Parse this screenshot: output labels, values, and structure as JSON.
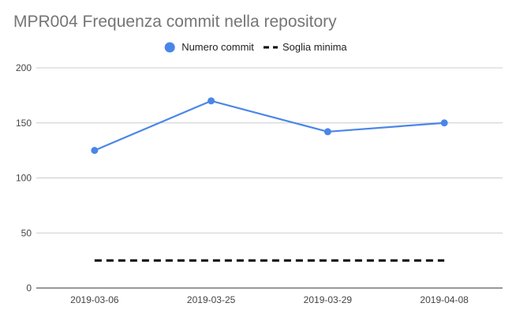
{
  "chart_data": {
    "type": "line",
    "title": "MPR004 Frequenza commit nella repository",
    "x": [
      "2019-03-06",
      "2019-03-25",
      "2019-03-29",
      "2019-04-08"
    ],
    "series": [
      {
        "name": "Numero commit",
        "values": [
          125,
          170,
          142,
          150
        ],
        "color": "#4a86e8",
        "style": "solid",
        "markers": true
      },
      {
        "name": "Soglia minima",
        "values": [
          25,
          25,
          25,
          25
        ],
        "color": "#000000",
        "style": "dashed",
        "markers": false
      }
    ],
    "ylim": [
      0,
      200
    ],
    "yticks": [
      0,
      50,
      100,
      150,
      200
    ],
    "grid": true,
    "legend": "top-center"
  }
}
